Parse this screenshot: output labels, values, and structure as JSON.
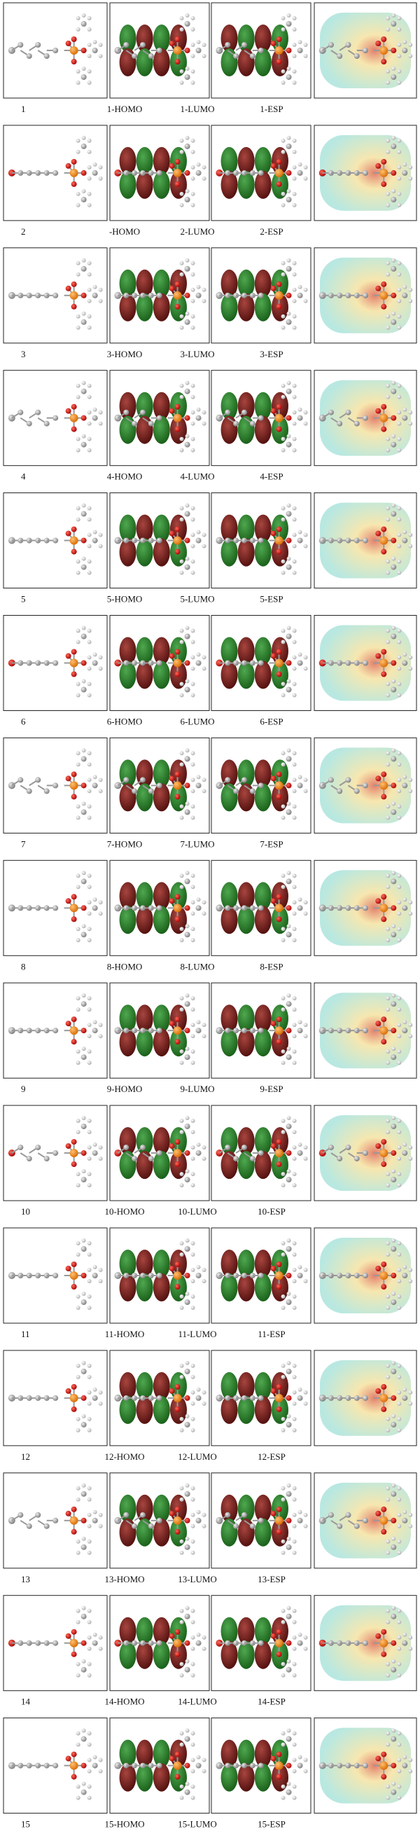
{
  "rows": [
    {
      "label": "1",
      "homo": "1-HOMO",
      "lumo": "1-LUMO",
      "esp": "1-ESP"
    },
    {
      "label": "2",
      "homo": "-HOMO",
      "lumo": "2-LUMO",
      "esp": "2-ESP"
    },
    {
      "label": "3",
      "homo": "3-HOMO",
      "lumo": "3-LUMO",
      "esp": "3-ESP"
    },
    {
      "label": "4",
      "homo": "4-HOMO",
      "lumo": "4-LUMO",
      "esp": "4-ESP"
    },
    {
      "label": "5",
      "homo": "5-HOMO",
      "lumo": "5-LUMO",
      "esp": "5-ESP"
    },
    {
      "label": "6",
      "homo": "6-HOMO",
      "lumo": "6-LUMO",
      "esp": "6-ESP"
    },
    {
      "label": "7",
      "homo": "7-HOMO",
      "lumo": "7-LUMO",
      "esp": "7-ESP"
    },
    {
      "label": "8",
      "homo": "8-HOMO",
      "lumo": "8-LUMO",
      "esp": "8-ESP"
    },
    {
      "label": "9",
      "homo": "9-HOMO",
      "lumo": "9-LUMO",
      "esp": "9-ESP"
    },
    {
      "label": "10",
      "homo": "10-HOMO",
      "lumo": "10-LUMO",
      "esp": "10-ESP"
    },
    {
      "label": "11",
      "homo": "11-HOMO",
      "lumo": "11-LUMO",
      "esp": "11-ESP"
    },
    {
      "label": "12",
      "homo": "12-HOMO",
      "lumo": "12-LUMO",
      "esp": "12-ESP"
    },
    {
      "label": "13",
      "homo": "13-HOMO",
      "lumo": "13-LUMO",
      "esp": "13-ESP"
    },
    {
      "label": "14",
      "homo": "14-HOMO",
      "lumo": "14-LUMO",
      "esp": "14-ESP"
    },
    {
      "label": "15",
      "homo": "15-HOMO",
      "lumo": "15-LUMO",
      "esp": "15-ESP"
    }
  ]
}
